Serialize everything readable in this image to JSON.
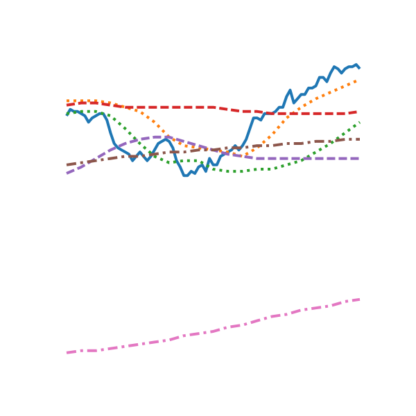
{
  "chart_data": {
    "type": "line",
    "title": "",
    "xlabel": "",
    "ylabel": "",
    "xlim": [
      0,
      40
    ],
    "ylim": [
      -9.2,
      4.6
    ],
    "axes_visible": false,
    "grid": false,
    "legend": "none",
    "series": [
      {
        "color": "#1f77b4",
        "dash": "solid",
        "x": [
          0,
          0.5,
          1,
          1.5,
          2,
          2.5,
          3,
          3.5,
          4,
          4.5,
          5,
          5.5,
          6,
          6.5,
          7,
          7.5,
          8,
          8.5,
          9,
          9.5,
          10,
          10.5,
          11,
          11.5,
          12,
          12.5,
          13,
          13.5,
          14,
          14.5,
          15,
          15.5,
          16,
          16.5,
          17,
          17.5,
          18,
          18.5,
          19,
          19.5,
          20,
          20.5,
          21,
          21.5,
          22,
          22.5,
          23,
          23.5,
          24,
          24.5,
          25,
          25.5,
          26,
          26.5,
          27,
          27.5,
          28,
          28.5,
          29,
          29.5,
          30,
          30.5,
          31,
          31.5,
          32,
          32.5,
          33,
          33.5,
          34,
          34.5,
          35,
          35.5,
          36,
          36.5,
          37,
          37.5,
          38,
          38.5,
          39,
          39.5,
          40
        ],
        "values": [
          2.1,
          2.4,
          2.3,
          2.3,
          2.2,
          2.1,
          1.8,
          2.0,
          2.1,
          2.2,
          2.2,
          1.9,
          1.3,
          0.8,
          0.6,
          0.5,
          0.4,
          0.3,
          0.0,
          0.2,
          0.4,
          0.2,
          0.0,
          0.2,
          0.5,
          0.8,
          0.9,
          1.0,
          0.9,
          0.6,
          0.0,
          -0.3,
          -0.7,
          -0.7,
          -0.5,
          -0.6,
          -0.3,
          -0.2,
          -0.5,
          0.1,
          -0.2,
          -0.2,
          0.2,
          0.3,
          0.4,
          0.5,
          0.7,
          0.5,
          0.7,
          1.0,
          1.5,
          2.0,
          2.0,
          1.9,
          2.2,
          2.2,
          2.2,
          2.3,
          2.5,
          2.5,
          3.0,
          3.3,
          2.7,
          2.9,
          3.1,
          3.1,
          3.4,
          3.4,
          3.5,
          3.9,
          3.9,
          3.7,
          4.1,
          4.4,
          4.3,
          4.1,
          4.3,
          4.4,
          4.4,
          4.5,
          4.3
        ]
      },
      {
        "color": "#ff7f0e",
        "dash": "dotted",
        "x": [
          0,
          2,
          4,
          6,
          8,
          10,
          12,
          14,
          16,
          18,
          20,
          22,
          24,
          26,
          28,
          30,
          32,
          34,
          36,
          38,
          40
        ],
        "values": [
          2.8,
          2.8,
          2.8,
          2.7,
          2.5,
          2.3,
          1.8,
          1.1,
          0.7,
          0.6,
          0.5,
          0.4,
          0.2,
          0.6,
          1.2,
          2.0,
          2.5,
          2.9,
          3.2,
          3.5,
          3.8
        ]
      },
      {
        "color": "#2ca02c",
        "dash": "dotted",
        "x": [
          0,
          2,
          4,
          6,
          8,
          10,
          12,
          14,
          16,
          18,
          20,
          22,
          24,
          26,
          28,
          30,
          32,
          34,
          36,
          38,
          40
        ],
        "values": [
          2.2,
          2.3,
          2.3,
          2.1,
          1.5,
          0.8,
          0.2,
          -0.1,
          0.0,
          0.0,
          -0.4,
          -0.5,
          -0.5,
          -0.4,
          -0.4,
          -0.2,
          0.0,
          0.4,
          0.8,
          1.3,
          1.8
        ]
      },
      {
        "color": "#d62728",
        "dash": "dashed",
        "x": [
          0,
          2,
          4,
          6,
          8,
          10,
          12,
          14,
          16,
          18,
          20,
          22,
          24,
          26,
          28,
          30,
          32,
          34,
          36,
          38,
          40
        ],
        "values": [
          2.6,
          2.7,
          2.7,
          2.6,
          2.5,
          2.5,
          2.5,
          2.5,
          2.5,
          2.5,
          2.5,
          2.4,
          2.3,
          2.3,
          2.2,
          2.2,
          2.2,
          2.2,
          2.2,
          2.2,
          2.3
        ]
      },
      {
        "color": "#9467bd",
        "dash": "dashed",
        "x": [
          0,
          2,
          4,
          6,
          8,
          10,
          12,
          14,
          16,
          18,
          20,
          22,
          24,
          26,
          28,
          30,
          32,
          34,
          36,
          38,
          40
        ],
        "values": [
          -0.6,
          -0.3,
          0.1,
          0.5,
          0.8,
          1.0,
          1.1,
          1.1,
          0.9,
          0.7,
          0.5,
          0.3,
          0.2,
          0.1,
          0.1,
          0.1,
          0.1,
          0.1,
          0.1,
          0.1,
          0.1
        ]
      },
      {
        "color": "#8c564b",
        "dash": "dashdot",
        "x": [
          0,
          2,
          4,
          6,
          8,
          10,
          12,
          14,
          16,
          18,
          20,
          22,
          24,
          26,
          28,
          30,
          32,
          34,
          36,
          38,
          40
        ],
        "values": [
          -0.2,
          -0.1,
          0.0,
          0.1,
          0.2,
          0.2,
          0.3,
          0.4,
          0.4,
          0.5,
          0.5,
          0.6,
          0.6,
          0.7,
          0.7,
          0.8,
          0.8,
          0.9,
          0.9,
          1.0,
          1.0
        ]
      },
      {
        "color": "#e377c2",
        "dash": "dashdot",
        "x": [
          0,
          2,
          4,
          6,
          8,
          10,
          12,
          14,
          16,
          18,
          20,
          22,
          24,
          26,
          28,
          30,
          32,
          34,
          36,
          38,
          40
        ],
        "values": [
          -9.0,
          -8.9,
          -8.9,
          -8.8,
          -8.7,
          -8.6,
          -8.5,
          -8.4,
          -8.2,
          -8.1,
          -8.0,
          -7.8,
          -7.7,
          -7.5,
          -7.3,
          -7.2,
          -7.0,
          -6.9,
          -6.8,
          -6.6,
          -6.5
        ]
      }
    ]
  }
}
